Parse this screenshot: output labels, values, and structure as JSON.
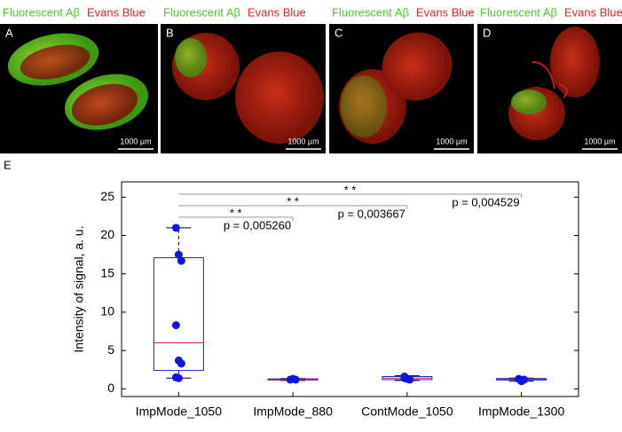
{
  "panels": [
    {
      "green": "Fluorescent Aβ",
      "red": "Evans Blue",
      "letter": "A",
      "scale": "1000 µm"
    },
    {
      "green": "Fluorescent Aβ",
      "red": "Evans Blue",
      "letter": "B",
      "scale": "1000 µm"
    },
    {
      "green": "Fluorescent Aβ",
      "red": "Evans Blue",
      "letter": "C",
      "scale": "1000 µm"
    },
    {
      "green": "Fluorescent Aβ",
      "red": "Evans Blue",
      "letter": "D",
      "scale": "1000 µm"
    }
  ],
  "chart_data": {
    "type": "box",
    "panel_label": "E",
    "y_label": "Intensity of signal, a. u.",
    "categories": [
      "ImpMode_1050",
      "ImpMode_880",
      "ContMode_1050",
      "ImpMode_1300"
    ],
    "ylim": [
      -1,
      27
    ],
    "yticks": [
      0,
      5,
      10,
      15,
      20,
      25
    ],
    "box_color": "#2323c8",
    "median_color": "#e0202a",
    "point_color": "#1414e0",
    "boxes": [
      {
        "whisker_low": 1.4,
        "q1": 2.4,
        "median": 6,
        "q3": 17.1,
        "whisker_high": 21,
        "points": [
          21,
          17.5,
          16.7,
          8.3,
          3.7,
          3.3,
          1.5,
          1.4
        ]
      },
      {
        "whisker_low": 1.1,
        "q1": 1.15,
        "median": 1.2,
        "q3": 1.3,
        "whisker_high": 1.35,
        "points": [
          1.2,
          1.3,
          1.2
        ]
      },
      {
        "whisker_low": 1.1,
        "q1": 1.2,
        "median": 1.4,
        "q3": 1.6,
        "whisker_high": 1.7,
        "points": [
          1.6,
          1.3,
          1.2,
          1.4
        ]
      },
      {
        "whisker_low": 1.0,
        "q1": 1.15,
        "median": 1.25,
        "q3": 1.35,
        "whisker_high": 1.4,
        "points": [
          1.3,
          1.0,
          1.2
        ]
      }
    ],
    "significance": [
      {
        "from": "ImpMode_1050",
        "to": "ImpMode_880",
        "stars": "* *",
        "label": "p = 0,005260"
      },
      {
        "from": "ImpMode_1050",
        "to": "ContMode_1050",
        "stars": "* *",
        "label": "p = 0,003667"
      },
      {
        "from": "ImpMode_1050",
        "to": "ImpMode_1300",
        "stars": "* *",
        "label": "p = 0,004529"
      }
    ]
  }
}
